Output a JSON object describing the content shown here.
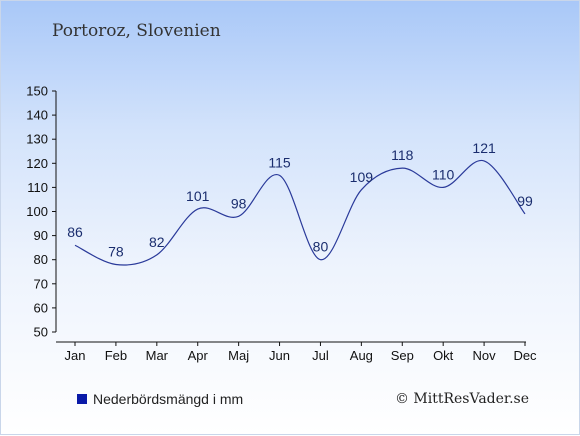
{
  "title": "Portoroz, Slovenien",
  "legend_label": "Nederbördsmängd i mm",
  "copyright": "© MittResVader.se",
  "colors": {
    "line": "#2a3a9a",
    "legend_swatch": "#0a1aa8",
    "label": "#1a2d6e"
  },
  "chart_data": {
    "type": "line",
    "categories": [
      "Jan",
      "Feb",
      "Mar",
      "Apr",
      "Maj",
      "Jun",
      "Jul",
      "Aug",
      "Sep",
      "Okt",
      "Nov",
      "Dec"
    ],
    "series": [
      {
        "name": "Nederbördsmängd i mm",
        "values": [
          86,
          78,
          82,
          101,
          98,
          115,
          80,
          109,
          118,
          110,
          121,
          99
        ]
      }
    ],
    "yticks": [
      50,
      60,
      70,
      80,
      90,
      100,
      110,
      120,
      130,
      140,
      150
    ],
    "ylim": [
      50,
      150
    ],
    "grid": false,
    "legend_position": "bottom-left"
  }
}
